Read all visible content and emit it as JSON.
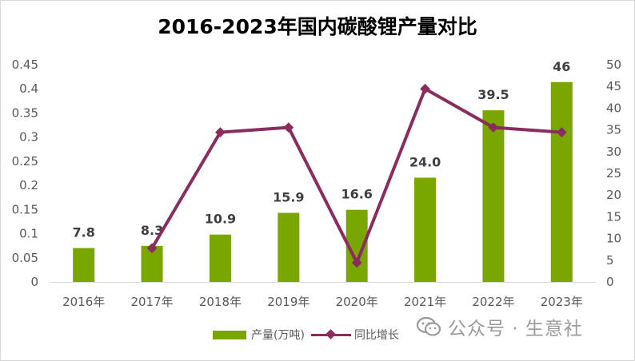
{
  "colors": {
    "bar": "#7aa600",
    "line": "#8b2c5e",
    "axis_text": "#595959",
    "label_text": "#404040",
    "grid": "#d9d9d9"
  },
  "watermark": "公众号 · 生意社",
  "chart_data": {
    "type": "bar",
    "title": "2016-2023年国内碳酸锂产量对比",
    "categories": [
      "2016年",
      "2017年",
      "2018年",
      "2019年",
      "2020年",
      "2021年",
      "2022年",
      "2023年"
    ],
    "series": [
      {
        "name": "产量(万吨)",
        "type": "bar",
        "axis": "right",
        "values": [
          7.8,
          8.3,
          10.9,
          15.9,
          16.6,
          24.0,
          39.5,
          46
        ],
        "labels": [
          "7.8",
          "8.3",
          "10.9",
          "15.9",
          "16.6",
          "24.0",
          "39.5",
          "46"
        ]
      },
      {
        "name": "同比增长",
        "type": "line",
        "axis": "left",
        "values": [
          null,
          0.07,
          0.31,
          0.32,
          0.04,
          0.4,
          0.32,
          0.31
        ]
      }
    ],
    "y_left": {
      "ylim": [
        0,
        0.45
      ],
      "ticks": [
        "0",
        "0.05",
        "0.1",
        "0.15",
        "0.2",
        "0.25",
        "0.3",
        "0.35",
        "0.4",
        "0.45"
      ]
    },
    "y_right": {
      "ylim": [
        0,
        50
      ],
      "ticks": [
        "0",
        "5",
        "10",
        "15",
        "20",
        "25",
        "30",
        "35",
        "40",
        "45",
        "50"
      ]
    },
    "legend": "bottom",
    "grid": false
  }
}
